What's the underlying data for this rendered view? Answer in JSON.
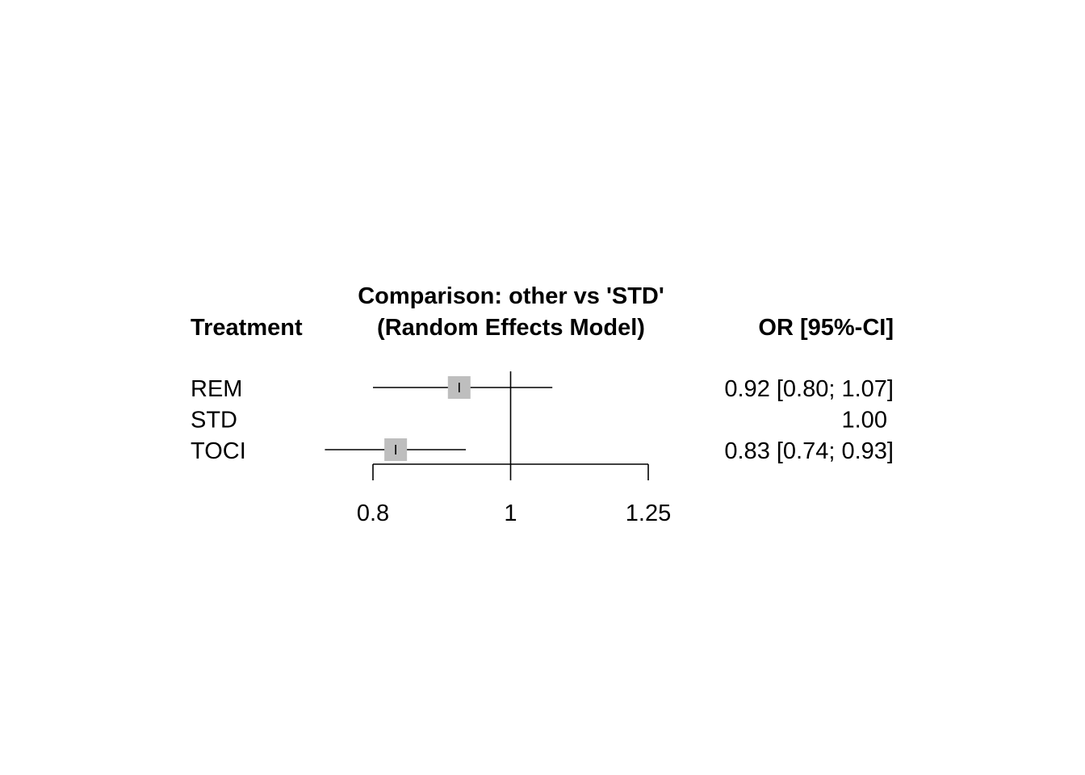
{
  "chart_data": {
    "type": "forest",
    "title_line1": "Comparison: other vs 'STD'",
    "title_line2": "(Random Effects Model)",
    "left_header": "Treatment",
    "right_header": "OR [95%-CI]",
    "scale": "log",
    "reference_line": 1,
    "xlim": [
      0.8,
      1.25
    ],
    "ticks": [
      0.8,
      1,
      1.25
    ],
    "tick_labels": [
      "0.8",
      "1",
      "1.25"
    ],
    "colors": {
      "box": "#bebebe",
      "line": "#000000"
    },
    "rows": [
      {
        "treatment": "REM",
        "or": 0.92,
        "lower": 0.8,
        "upper": 1.07,
        "label": "0.92 [0.80; 1.07]"
      },
      {
        "treatment": "STD",
        "or": null,
        "lower": null,
        "upper": null,
        "label": "1.00"
      },
      {
        "treatment": "TOCI",
        "or": 0.83,
        "lower": 0.74,
        "upper": 0.93,
        "label": "0.83 [0.74; 0.93]"
      }
    ]
  }
}
